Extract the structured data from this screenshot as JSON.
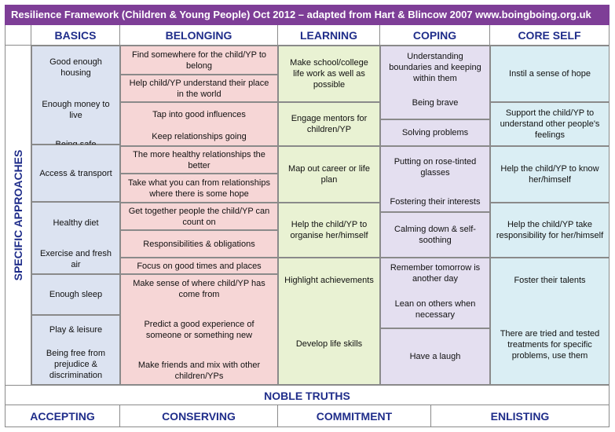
{
  "title": "Resilience Framework (Children & Young People) Oct 2012 – adapted from Hart & Blincow 2007 www.boingboing.org.uk",
  "headers": {
    "basics": "BASICS",
    "belonging": "BELONGING",
    "learning": "LEARNING",
    "coping": "COPING",
    "core_self": "CORE SELF"
  },
  "side_label": "SPECIFIC APPROACHES",
  "basics": [
    "Good enough housing",
    "Enough money to live",
    "Being safe",
    "Access & transport",
    "Healthy diet",
    "Exercise and fresh air",
    "Enough sleep",
    "Play & leisure",
    "Being free from prejudice & discrimination"
  ],
  "belonging": [
    "Find somewhere for the child/YP to belong",
    "Help child/YP understand their place in the world",
    "Tap into good influences",
    "Keep relationships going",
    "The more healthy relationships the better",
    "Take what you can from relationships where there is some hope",
    "Get together people the child/YP can count on",
    "Responsibilities & obligations",
    "Focus on good times and places",
    "Make sense of where child/YP has come from",
    "Predict a good experience of someone or something new",
    "Make friends and mix with other children/YPs"
  ],
  "learning": [
    "Make school/college life work as well as possible",
    "Engage mentors for children/YP",
    "Map out career or life plan",
    "Help the child/YP to organise her/himself",
    "Highlight achievements",
    "Develop life skills"
  ],
  "coping": [
    "Understanding boundaries and keeping within them",
    "Being brave",
    "Solving problems",
    "Putting on rose-tinted glasses",
    "Fostering their interests",
    "Calming down & self-soothing",
    "Remember tomorrow is another day",
    "Lean on others when necessary",
    "Have a laugh"
  ],
  "core_self": [
    "Instil a sense of hope",
    "Support the child/YP to understand other people's feelings",
    "Help the child/YP to know her/himself",
    "Help the child/YP take responsibility for her/himself",
    "Foster their talents",
    "There are tried and tested treatments for specific problems, use them"
  ],
  "noble_truths": "NOBLE TRUTHS",
  "bottom": {
    "accepting": "ACCEPTING",
    "conserving": "CONSERVING",
    "commitment": "COMMITMENT",
    "enlisting": "ENLISTING"
  }
}
